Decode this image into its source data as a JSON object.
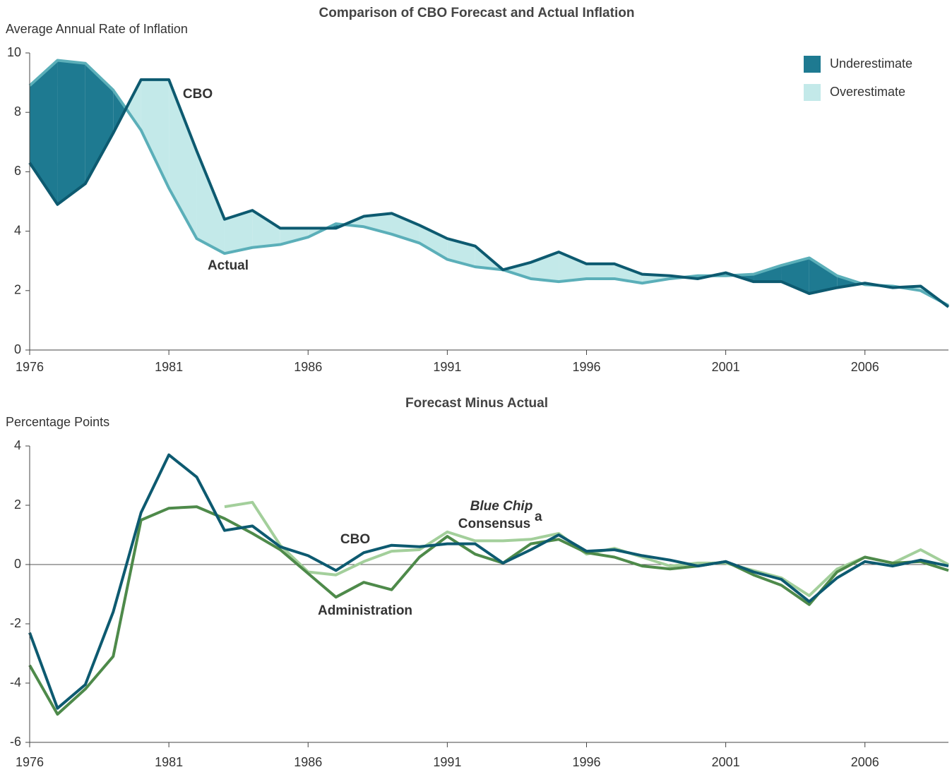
{
  "chart_data": [
    {
      "type": "area-comparison",
      "title": "Comparison of CBO Forecast and Actual Inflation",
      "y_label": "Average Annual Rate of Inflation",
      "x": [
        1976,
        1977,
        1978,
        1979,
        1980,
        1981,
        1982,
        1983,
        1984,
        1985,
        1986,
        1987,
        1988,
        1989,
        1990,
        1991,
        1992,
        1993,
        1994,
        1995,
        1996,
        1997,
        1998,
        1999,
        2000,
        2001,
        2002,
        2003,
        2004,
        2005,
        2006,
        2007,
        2008,
        2009
      ],
      "series": [
        {
          "name": "CBO",
          "color": "#0d5a70",
          "values": [
            6.3,
            4.9,
            5.6,
            7.3,
            9.1,
            9.1,
            6.7,
            4.4,
            4.7,
            4.1,
            4.1,
            4.1,
            4.5,
            4.6,
            4.2,
            3.75,
            3.5,
            2.7,
            2.95,
            3.3,
            2.9,
            2.9,
            2.55,
            2.5,
            2.4,
            2.6,
            2.3,
            2.3,
            1.9,
            2.1,
            2.25,
            2.1,
            2.15,
            1.45
          ]
        },
        {
          "name": "Actual",
          "color": "#5bafb9",
          "values": [
            8.9,
            9.75,
            9.65,
            8.75,
            7.4,
            5.45,
            3.75,
            3.25,
            3.45,
            3.55,
            3.8,
            4.25,
            4.15,
            3.9,
            3.6,
            3.05,
            2.8,
            2.7,
            2.4,
            2.3,
            2.4,
            2.4,
            2.25,
            2.4,
            2.5,
            2.5,
            2.55,
            2.85,
            3.1,
            2.5,
            2.2,
            2.15,
            2.0,
            1.5
          ]
        }
      ],
      "fills": [
        {
          "name": "Underestimate",
          "color": "#1e7a91"
        },
        {
          "name": "Overestimate",
          "color": "#c3e9e9"
        }
      ],
      "xlim": [
        1976,
        2009
      ],
      "xticks": [
        1976,
        1981,
        1986,
        1991,
        1996,
        2001,
        2006
      ],
      "ylim": [
        0,
        10
      ],
      "yticks": [
        0,
        2,
        4,
        6,
        8,
        10
      ]
    },
    {
      "type": "line",
      "title": "Forecast Minus Actual",
      "y_label": "Percentage Points",
      "x": [
        1976,
        1977,
        1978,
        1979,
        1980,
        1981,
        1982,
        1983,
        1984,
        1985,
        1986,
        1987,
        1988,
        1989,
        1990,
        1991,
        1992,
        1993,
        1994,
        1995,
        1996,
        1997,
        1998,
        1999,
        2000,
        2001,
        2002,
        2003,
        2004,
        2005,
        2006,
        2007,
        2008,
        2009
      ],
      "series": [
        {
          "name": "Blue Chip",
          "label_suffix": "Consensus",
          "footnote": "a",
          "color": "#a3cf9b",
          "values": [
            null,
            null,
            null,
            null,
            null,
            null,
            null,
            1.95,
            2.1,
            0.65,
            -0.25,
            -0.35,
            0.1,
            0.45,
            0.5,
            1.1,
            0.8,
            0.8,
            0.85,
            1.05,
            0.35,
            0.55,
            0.25,
            -0.05,
            0.05,
            0.05,
            -0.2,
            -0.45,
            -1.05,
            -0.15,
            0.25,
            0.05,
            0.5,
            0.0
          ]
        },
        {
          "name": "Administration",
          "color": "#4e8a4a",
          "values": [
            -3.4,
            -5.05,
            -4.2,
            -3.1,
            1.5,
            1.9,
            1.95,
            1.55,
            1.05,
            0.5,
            -0.3,
            -1.1,
            -0.6,
            -0.85,
            0.25,
            0.95,
            0.35,
            0.05,
            0.7,
            0.85,
            0.4,
            0.25,
            -0.05,
            -0.15,
            -0.05,
            0.1,
            -0.35,
            -0.7,
            -1.35,
            -0.25,
            0.25,
            0.05,
            0.1,
            -0.2
          ]
        },
        {
          "name": "CBO",
          "color": "#0d5a70",
          "values": [
            -2.3,
            -4.85,
            -4.05,
            -1.6,
            1.75,
            3.7,
            2.95,
            1.15,
            1.3,
            0.6,
            0.3,
            -0.2,
            0.4,
            0.65,
            0.6,
            0.7,
            0.7,
            0.05,
            0.5,
            1.0,
            0.45,
            0.5,
            0.3,
            0.15,
            -0.05,
            0.1,
            -0.25,
            -0.5,
            -1.25,
            -0.45,
            0.1,
            -0.05,
            0.15,
            -0.05
          ]
        }
      ],
      "xlim": [
        1976,
        2009
      ],
      "xticks": [
        1976,
        1981,
        1986,
        1991,
        1996,
        2001,
        2006
      ],
      "ylim": [
        -6,
        4
      ],
      "yticks": [
        -6,
        -4,
        -2,
        0,
        2,
        4
      ]
    }
  ]
}
